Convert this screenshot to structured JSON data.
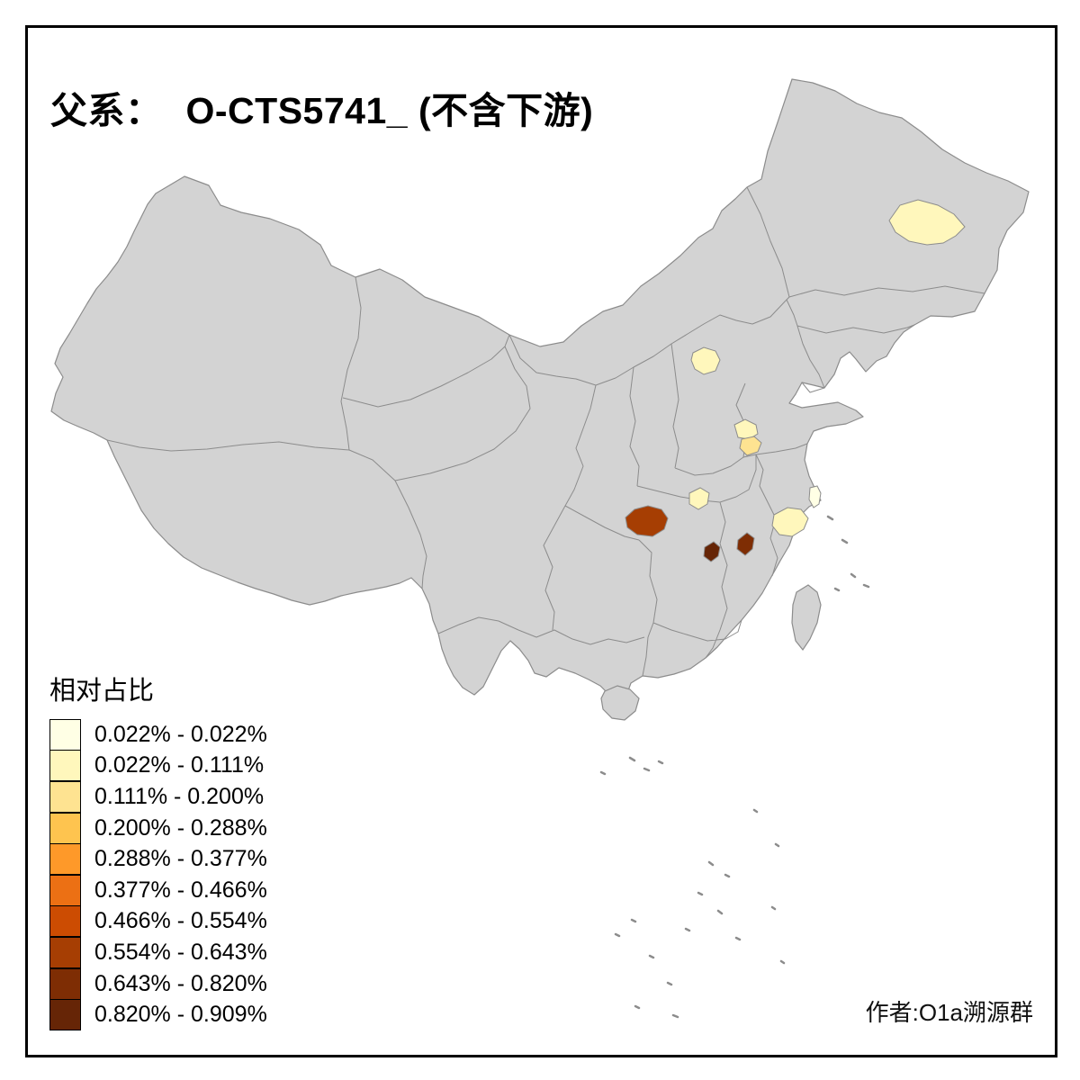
{
  "page": {
    "background": "#ffffff",
    "frame_color": "#000000"
  },
  "title": {
    "prefix": "父系：",
    "main": "O-CTS5741_ (不含下游)"
  },
  "legend": {
    "title": "相对占比",
    "items": [
      {
        "label": "0.022% - 0.022%",
        "color": "#FFFFE5"
      },
      {
        "label": "0.022% - 0.111%",
        "color": "#FFF7BC"
      },
      {
        "label": "0.111% - 0.200%",
        "color": "#FEE391"
      },
      {
        "label": "0.200% - 0.288%",
        "color": "#FEC44F"
      },
      {
        "label": "0.288% - 0.377%",
        "color": "#FE9929"
      },
      {
        "label": "0.377% - 0.466%",
        "color": "#EC7014"
      },
      {
        "label": "0.466% - 0.554%",
        "color": "#CC4C02"
      },
      {
        "label": "0.554% - 0.643%",
        "color": "#A63E03"
      },
      {
        "label": "0.643% - 0.820%",
        "color": "#7E2D04"
      },
      {
        "label": "0.820% - 0.909%",
        "color": "#662506"
      }
    ]
  },
  "credit": {
    "text": "作者:O1a溯源群"
  },
  "map": {
    "land_color": "#D3D3D3",
    "border_color": "#8C8C8C",
    "regions": [
      {
        "id": "patch-northeast",
        "color": "#FFF7BC"
      },
      {
        "id": "patch-north",
        "color": "#FFF7BC"
      },
      {
        "id": "patch-east-upper",
        "color": "#FFF7BC"
      },
      {
        "id": "patch-east-lower",
        "color": "#FEE391"
      },
      {
        "id": "patch-central-pale",
        "color": "#FFF7BC"
      },
      {
        "id": "patch-coast",
        "color": "#FFFFE5"
      },
      {
        "id": "patch-southeast",
        "color": "#FFF7BC"
      },
      {
        "id": "patch-dark-large",
        "color": "#A63E03"
      },
      {
        "id": "patch-dark-south",
        "color": "#662506"
      },
      {
        "id": "patch-dark-east",
        "color": "#7E2D04"
      }
    ]
  }
}
